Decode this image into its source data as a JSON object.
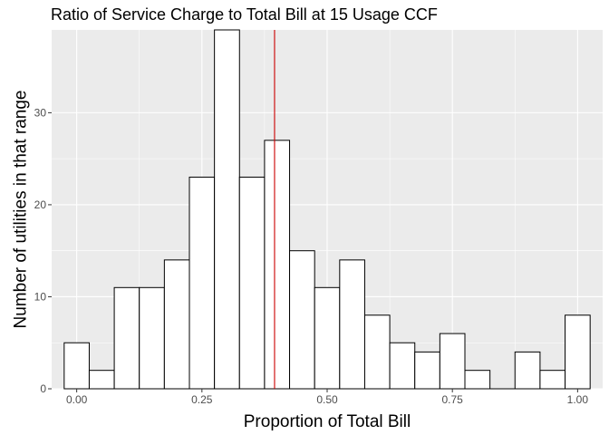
{
  "chart_data": {
    "type": "bar",
    "title": "Ratio of Service Charge to Total Bill at 15 Usage CCF",
    "xlabel": "Proportion of Total Bill",
    "ylabel": "Number of utilities in that range",
    "bin_width": 0.05,
    "bins": [
      {
        "x0": -0.025,
        "x1": 0.025,
        "count": 5
      },
      {
        "x0": 0.025,
        "x1": 0.075,
        "count": 2
      },
      {
        "x0": 0.075,
        "x1": 0.125,
        "count": 11
      },
      {
        "x0": 0.125,
        "x1": 0.175,
        "count": 11
      },
      {
        "x0": 0.175,
        "x1": 0.225,
        "count": 14
      },
      {
        "x0": 0.225,
        "x1": 0.275,
        "count": 23
      },
      {
        "x0": 0.275,
        "x1": 0.325,
        "count": 39
      },
      {
        "x0": 0.325,
        "x1": 0.375,
        "count": 23
      },
      {
        "x0": 0.375,
        "x1": 0.425,
        "count": 27
      },
      {
        "x0": 0.425,
        "x1": 0.475,
        "count": 15
      },
      {
        "x0": 0.475,
        "x1": 0.525,
        "count": 11
      },
      {
        "x0": 0.525,
        "x1": 0.575,
        "count": 14
      },
      {
        "x0": 0.575,
        "x1": 0.625,
        "count": 8
      },
      {
        "x0": 0.625,
        "x1": 0.675,
        "count": 5
      },
      {
        "x0": 0.675,
        "x1": 0.725,
        "count": 4
      },
      {
        "x0": 0.725,
        "x1": 0.775,
        "count": 6
      },
      {
        "x0": 0.775,
        "x1": 0.825,
        "count": 2
      },
      {
        "x0": 0.825,
        "x1": 0.875,
        "count": 0
      },
      {
        "x0": 0.875,
        "x1": 0.925,
        "count": 4
      },
      {
        "x0": 0.925,
        "x1": 0.975,
        "count": 2
      },
      {
        "x0": 0.975,
        "x1": 1.025,
        "count": 8
      }
    ],
    "reference_line": {
      "x": 0.395,
      "color": "#cc0000"
    },
    "xlim": [
      -0.05,
      1.05
    ],
    "ylim": [
      0,
      39
    ],
    "x_ticks": [
      0.0,
      0.25,
      0.5,
      0.75,
      1.0
    ],
    "x_tick_labels": [
      "0.00",
      "0.25",
      "0.50",
      "0.75",
      "1.00"
    ],
    "y_ticks": [
      0,
      10,
      20,
      30
    ],
    "y_tick_labels": [
      "0",
      "10",
      "20",
      "30"
    ],
    "grid": true,
    "colors": {
      "panel": "#ebebeb",
      "grid": "#ffffff",
      "bar_fill": "#ffffff",
      "bar_stroke": "#000000"
    }
  }
}
